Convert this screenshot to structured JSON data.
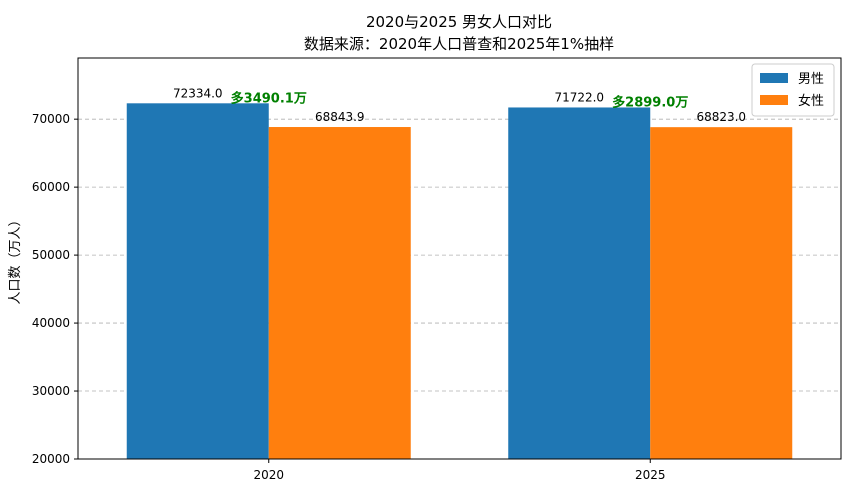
{
  "chart_data": {
    "type": "bar",
    "title": "2020与2025 男女人口对比",
    "subtitle": "数据来源：2020年人口普查和2025年1%抽样",
    "xlabel": "",
    "ylabel": "人口数（万人）",
    "categories": [
      "2020",
      "2025"
    ],
    "ylim": [
      20000,
      79000
    ],
    "yticks": [
      20000,
      30000,
      40000,
      50000,
      60000,
      70000
    ],
    "grid": "y-dashed",
    "legend_position": "top-right",
    "series": [
      {
        "name": "男性",
        "color": "#1f77b4",
        "values": [
          72334.0,
          71722.0
        ],
        "labels": [
          "72334.0",
          "71722.0"
        ]
      },
      {
        "name": "女性",
        "color": "#ff7f0e",
        "values": [
          68843.9,
          68823.0
        ],
        "labels": [
          "68843.9",
          "68823.0"
        ]
      }
    ],
    "annotations": [
      {
        "category": "2020",
        "text": "多3490.1万",
        "color": "#008000"
      },
      {
        "category": "2025",
        "text": "多2899.0万",
        "color": "#008000"
      }
    ]
  }
}
